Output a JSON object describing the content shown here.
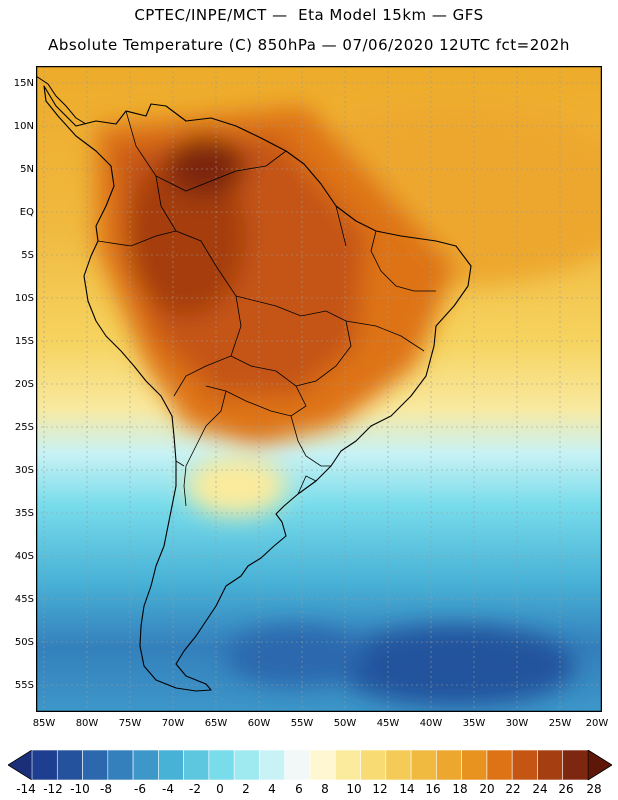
{
  "header": {
    "line1": "CPTEC/INPE/MCT —  Eta Model 15km — GFS",
    "line2": "Absolute Temperature (C) 850hPa — 07/06/2020 12UTC fct=202h"
  },
  "map": {
    "lat_labels": [
      "15N",
      "10N",
      "5N",
      "EQ",
      "5S",
      "10S",
      "15S",
      "20S",
      "25S",
      "30S",
      "35S",
      "40S",
      "45S",
      "50S",
      "55S"
    ],
    "lon_labels": [
      "85W",
      "80W",
      "75W",
      "70W",
      "65W",
      "60W",
      "55W",
      "50W",
      "45W",
      "40W",
      "35W",
      "30W",
      "25W",
      "20W"
    ]
  },
  "colorbar": {
    "labels": [
      "-14",
      "-12",
      "-10",
      "-8",
      "-6",
      "-4",
      "-2",
      "0",
      "2",
      "4",
      "6",
      "8",
      "10",
      "12",
      "14",
      "16",
      "18",
      "20",
      "22",
      "24",
      "26",
      "28"
    ],
    "colors": [
      "#1e3f8f",
      "#24529c",
      "#2b68ad",
      "#3480bc",
      "#3d97c9",
      "#48b1d6",
      "#5ec7e0",
      "#78dceb",
      "#9feaf1",
      "#c8f2f5",
      "#f2f7f8",
      "#fff7d2",
      "#fbeb9c",
      "#f8dc73",
      "#f4cb56",
      "#f0b93f",
      "#eda72e",
      "#e8921f",
      "#de7316",
      "#c55512",
      "#a53e10",
      "#7d2610"
    ],
    "low_color": "#1a2f78",
    "high_color": "#5e1608"
  }
}
